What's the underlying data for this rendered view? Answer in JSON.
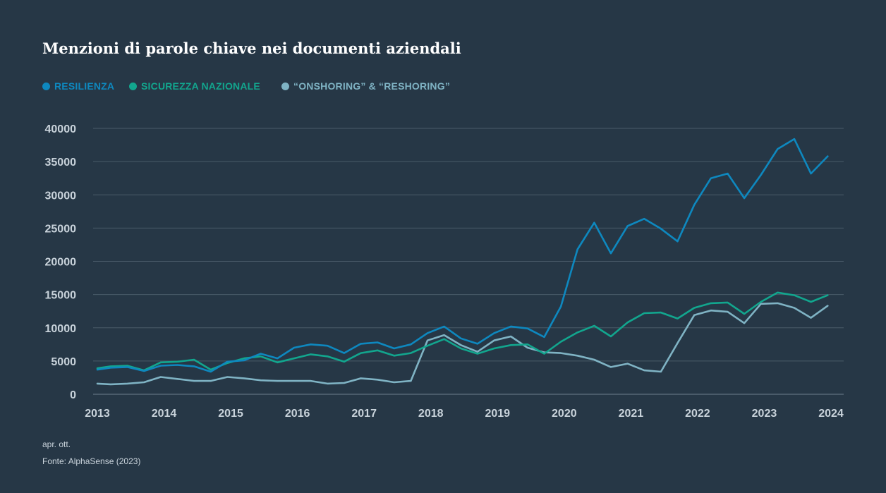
{
  "title": "Menzioni di parole chiave nei documenti aziendali",
  "legend": [
    {
      "label": "RESILIENZA",
      "color": "#0e88bf"
    },
    {
      "label": "SICUREZZA NAZIONALE",
      "color": "#12a68e"
    },
    {
      "label": "“ONSHORING” & “RESHORING”",
      "color": "#7fb3c4"
    }
  ],
  "note": "apr. ott.",
  "source": "Fonte: AlphaSense (2023)",
  "chart_data": {
    "type": "line",
    "title": "Menzioni di parole chiave nei documenti aziendali",
    "xlabel": "",
    "ylabel": "",
    "x_ticks": [
      "2013",
      "2014",
      "2015",
      "2016",
      "2017",
      "2018",
      "2019",
      "2020",
      "2021",
      "2022",
      "2023",
      "2024"
    ],
    "y_ticks": [
      "0",
      "5000",
      "10000",
      "15000",
      "20000",
      "25000",
      "30000",
      "35000",
      "40000"
    ],
    "ylim": [
      0,
      40000
    ],
    "xlim": [
      2013,
      2024
    ],
    "grid": true,
    "legend_position": "top-left",
    "x": [
      2013.0,
      2013.2,
      2013.45,
      2013.7,
      2013.95,
      2014.2,
      2014.45,
      2014.7,
      2014.95,
      2015.2,
      2015.45,
      2015.7,
      2015.95,
      2016.2,
      2016.45,
      2016.7,
      2016.95,
      2017.2,
      2017.45,
      2017.7,
      2017.95,
      2018.2,
      2018.45,
      2018.7,
      2018.95,
      2019.2,
      2019.45,
      2019.7,
      2019.95,
      2020.2,
      2020.45,
      2020.7,
      2020.95,
      2021.2,
      2021.45,
      2021.7,
      2021.95,
      2022.2,
      2022.45,
      2022.7,
      2022.95,
      2023.2,
      2023.45,
      2023.7,
      2023.95
    ],
    "series": [
      {
        "name": "RESILIENZA",
        "color": "#0e88bf",
        "values": [
          3700,
          4000,
          4100,
          3500,
          4300,
          4400,
          4200,
          3400,
          4900,
          5100,
          6100,
          5400,
          7000,
          7500,
          7300,
          6200,
          7600,
          7800,
          6900,
          7500,
          9200,
          10200,
          8400,
          7600,
          9200,
          10200,
          9900,
          8600,
          13200,
          21800,
          25800,
          21200,
          25300,
          26400,
          24900,
          23000,
          28500,
          32500,
          33200,
          29500,
          33000,
          36900,
          38400,
          33200,
          35800
        ]
      },
      {
        "name": "SICUREZZA NAZIONALE",
        "color": "#12a68e",
        "values": [
          3900,
          4200,
          4300,
          3600,
          4800,
          4900,
          5200,
          3700,
          4700,
          5400,
          5700,
          4800,
          5400,
          6000,
          5700,
          4900,
          6200,
          6600,
          5800,
          6200,
          7300,
          8300,
          6900,
          6100,
          6900,
          7400,
          7500,
          6100,
          7900,
          9300,
          10300,
          8700,
          10800,
          12200,
          12300,
          11400,
          13000,
          13700,
          13800,
          12100,
          13900,
          15300,
          14900,
          13900,
          14900
        ]
      },
      {
        "name": "“ONSHORING” & “RESHORING”",
        "color": "#7fb3c4",
        "values": [
          1600,
          1500,
          1600,
          1800,
          2600,
          2300,
          2000,
          2000,
          2600,
          2400,
          2100,
          2000,
          2000,
          2000,
          1600,
          1700,
          2400,
          2200,
          1800,
          2000,
          8100,
          8900,
          7400,
          6400,
          8100,
          8700,
          7000,
          6300,
          6200,
          5800,
          5200,
          4100,
          4600,
          3600,
          3400,
          7700,
          11900,
          12600,
          12400,
          10700,
          13600,
          13700,
          13000,
          11500,
          13300
        ]
      }
    ]
  }
}
